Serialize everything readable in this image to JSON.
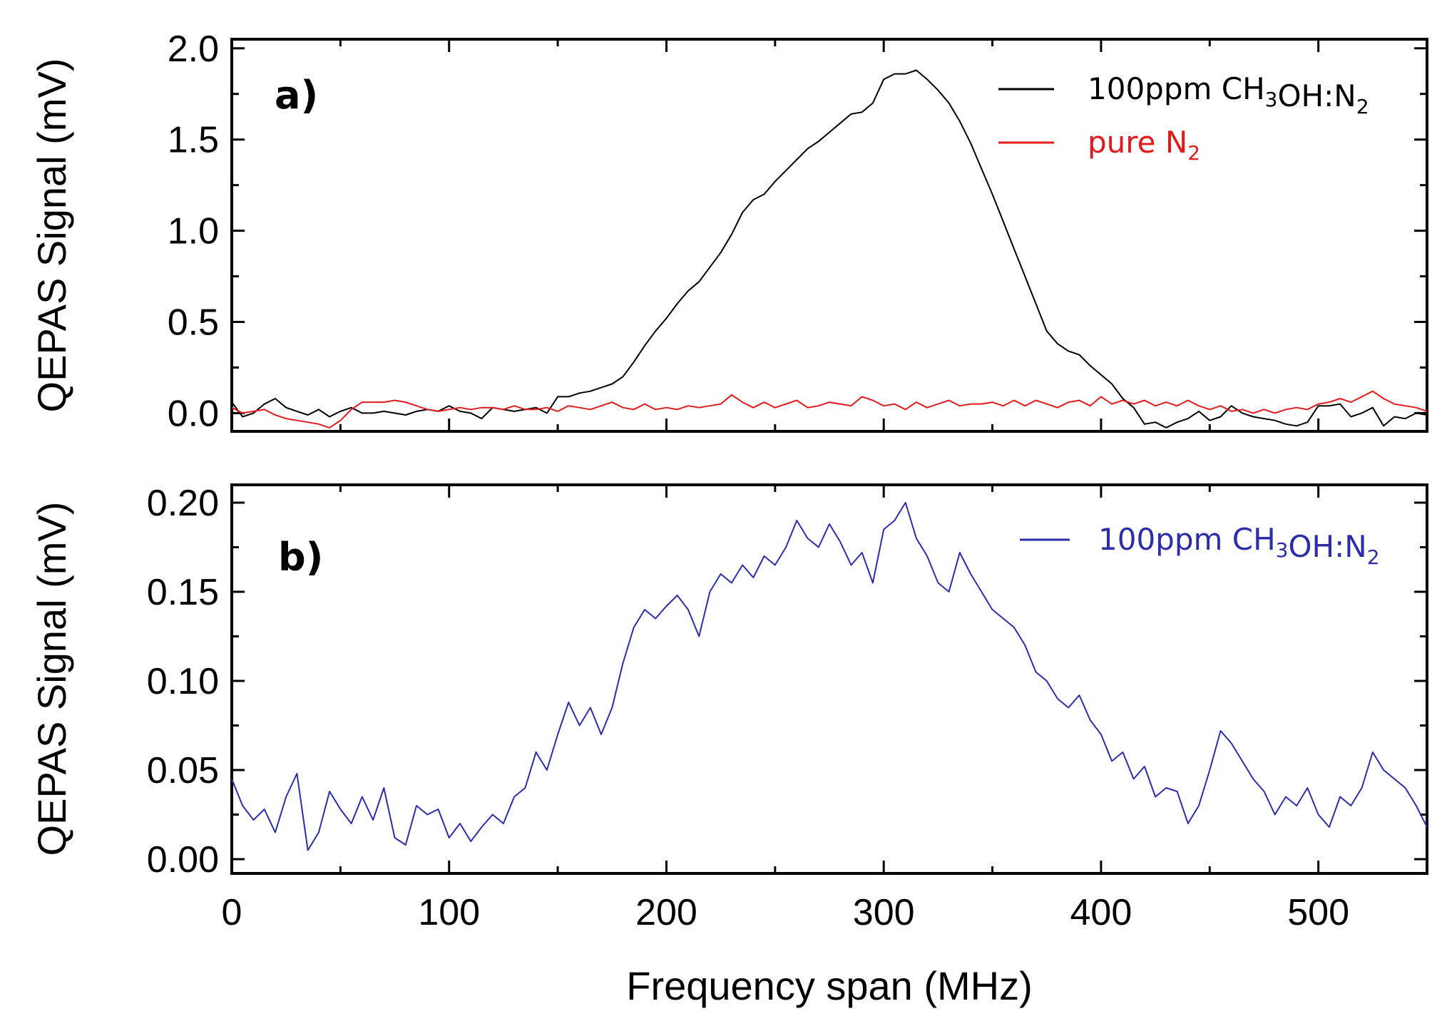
{
  "chart_data": [
    {
      "type": "line",
      "panel_label": "a)",
      "ylabel": "QEPAS Signal (mV)",
      "xlim": [
        0,
        550
      ],
      "ylim": [
        -0.1,
        2.05
      ],
      "yticks": [
        0.0,
        0.5,
        1.0,
        1.5,
        2.0
      ],
      "ytick_labels": [
        "0.0",
        "0.5",
        "1.0",
        "1.5",
        "2.0"
      ],
      "xticks": [
        0,
        100,
        200,
        300,
        400,
        500
      ],
      "grid": false,
      "legend_position": "top-right",
      "series": [
        {
          "name": "100ppm CH3OH:N2",
          "legend": {
            "pre": "100ppm CH",
            "sub1": "3",
            "mid": "OH:N",
            "sub2": "2"
          },
          "color": "#000000",
          "x": [
            0,
            5,
            10,
            15,
            20,
            25,
            30,
            35,
            40,
            45,
            50,
            55,
            60,
            65,
            70,
            75,
            80,
            85,
            90,
            95,
            100,
            105,
            110,
            115,
            120,
            125,
            130,
            135,
            140,
            145,
            150,
            155,
            160,
            165,
            170,
            175,
            180,
            185,
            190,
            195,
            200,
            205,
            210,
            215,
            220,
            225,
            230,
            235,
            240,
            245,
            250,
            255,
            260,
            265,
            270,
            275,
            280,
            285,
            290,
            295,
            300,
            305,
            310,
            315,
            320,
            325,
            330,
            335,
            340,
            345,
            350,
            355,
            360,
            365,
            370,
            375,
            380,
            385,
            390,
            395,
            400,
            405,
            410,
            415,
            420,
            425,
            430,
            435,
            440,
            445,
            450,
            455,
            460,
            465,
            470,
            475,
            480,
            485,
            490,
            495,
            500,
            505,
            510,
            515,
            520,
            525,
            530,
            535,
            540,
            545,
            550
          ],
          "values": [
            0.06,
            -0.02,
            0.0,
            0.05,
            0.08,
            0.03,
            0.01,
            -0.01,
            0.02,
            -0.02,
            0.01,
            0.03,
            0.0,
            0.0,
            0.01,
            0.0,
            -0.01,
            0.01,
            0.02,
            0.01,
            0.04,
            0.01,
            0.0,
            -0.03,
            0.03,
            0.02,
            0.01,
            0.02,
            0.03,
            0.0,
            0.09,
            0.09,
            0.11,
            0.12,
            0.14,
            0.16,
            0.2,
            0.28,
            0.37,
            0.45,
            0.52,
            0.6,
            0.67,
            0.72,
            0.8,
            0.88,
            0.98,
            1.1,
            1.17,
            1.2,
            1.27,
            1.33,
            1.39,
            1.45,
            1.49,
            1.54,
            1.59,
            1.64,
            1.65,
            1.7,
            1.83,
            1.86,
            1.86,
            1.88,
            1.83,
            1.77,
            1.7,
            1.6,
            1.48,
            1.34,
            1.2,
            1.05,
            0.9,
            0.75,
            0.6,
            0.45,
            0.38,
            0.34,
            0.32,
            0.26,
            0.21,
            0.16,
            0.08,
            0.03,
            -0.06,
            -0.05,
            -0.08,
            -0.05,
            -0.03,
            0.01,
            -0.04,
            -0.02,
            0.04,
            0.0,
            -0.02,
            -0.03,
            -0.04,
            -0.06,
            -0.07,
            -0.05,
            0.04,
            0.04,
            0.05,
            -0.02,
            0.0,
            0.03,
            -0.07,
            -0.02,
            -0.03,
            0.0,
            -0.01
          ]
        },
        {
          "name": "pure N2",
          "legend": {
            "pre": "pure N",
            "sub1": "2",
            "mid": "",
            "sub2": ""
          },
          "color": "#e31a1c",
          "x": [
            0,
            5,
            10,
            15,
            20,
            25,
            30,
            35,
            40,
            45,
            50,
            55,
            60,
            65,
            70,
            75,
            80,
            85,
            90,
            95,
            100,
            105,
            110,
            115,
            120,
            125,
            130,
            135,
            140,
            145,
            150,
            155,
            160,
            165,
            170,
            175,
            180,
            185,
            190,
            195,
            200,
            205,
            210,
            215,
            220,
            225,
            230,
            235,
            240,
            245,
            250,
            255,
            260,
            265,
            270,
            275,
            280,
            285,
            290,
            295,
            300,
            305,
            310,
            315,
            320,
            325,
            330,
            335,
            340,
            345,
            350,
            355,
            360,
            365,
            370,
            375,
            380,
            385,
            390,
            395,
            400,
            405,
            410,
            415,
            420,
            425,
            430,
            435,
            440,
            445,
            450,
            455,
            460,
            465,
            470,
            475,
            480,
            485,
            490,
            495,
            500,
            505,
            510,
            515,
            520,
            525,
            530,
            535,
            540,
            545,
            550
          ],
          "values": [
            0.03,
            0.0,
            0.01,
            0.02,
            -0.01,
            -0.03,
            -0.04,
            -0.05,
            -0.06,
            -0.08,
            -0.04,
            0.02,
            0.06,
            0.06,
            0.06,
            0.07,
            0.06,
            0.04,
            0.02,
            0.01,
            0.02,
            0.03,
            0.02,
            0.03,
            0.03,
            0.02,
            0.04,
            0.02,
            0.02,
            0.03,
            0.01,
            0.04,
            0.03,
            0.02,
            0.04,
            0.06,
            0.03,
            0.02,
            0.05,
            0.02,
            0.03,
            0.02,
            0.04,
            0.03,
            0.04,
            0.05,
            0.1,
            0.06,
            0.03,
            0.06,
            0.03,
            0.05,
            0.07,
            0.03,
            0.04,
            0.06,
            0.05,
            0.04,
            0.09,
            0.07,
            0.04,
            0.05,
            0.02,
            0.06,
            0.03,
            0.05,
            0.07,
            0.04,
            0.05,
            0.05,
            0.06,
            0.04,
            0.07,
            0.04,
            0.07,
            0.05,
            0.03,
            0.06,
            0.07,
            0.04,
            0.09,
            0.05,
            0.07,
            0.05,
            0.07,
            0.04,
            0.06,
            0.04,
            0.07,
            0.04,
            0.02,
            0.04,
            0.01,
            0.02,
            0.0,
            0.02,
            0.0,
            0.02,
            0.03,
            0.02,
            0.05,
            0.06,
            0.08,
            0.06,
            0.09,
            0.12,
            0.08,
            0.05,
            0.04,
            0.03,
            0.01
          ]
        }
      ]
    },
    {
      "type": "line",
      "panel_label": "b)",
      "ylabel": "QEPAS Signal (mV)",
      "xlabel": "Frequency span (MHz)",
      "xlim": [
        0,
        550
      ],
      "ylim": [
        -0.008,
        0.21
      ],
      "yticks": [
        0.0,
        0.05,
        0.1,
        0.15,
        0.2
      ],
      "ytick_labels": [
        "0.00",
        "0.05",
        "0.10",
        "0.15",
        "0.20"
      ],
      "xticks": [
        0,
        100,
        200,
        300,
        400,
        500
      ],
      "xtick_labels": [
        "0",
        "100",
        "200",
        "300",
        "400",
        "500"
      ],
      "grid": false,
      "legend_position": "top-right",
      "series": [
        {
          "name": "100ppm CH3OH:N2",
          "legend": {
            "pre": "100ppm CH",
            "sub1": "3",
            "mid": "OH:N",
            "sub2": "2"
          },
          "color": "#2b2dab",
          "x": [
            0,
            5,
            10,
            15,
            20,
            25,
            30,
            35,
            40,
            45,
            50,
            55,
            60,
            65,
            70,
            75,
            80,
            85,
            90,
            95,
            100,
            105,
            110,
            115,
            120,
            125,
            130,
            135,
            140,
            145,
            150,
            155,
            160,
            165,
            170,
            175,
            180,
            185,
            190,
            195,
            200,
            205,
            210,
            215,
            220,
            225,
            230,
            235,
            240,
            245,
            250,
            255,
            260,
            265,
            270,
            275,
            280,
            285,
            290,
            295,
            300,
            305,
            310,
            315,
            320,
            325,
            330,
            335,
            340,
            345,
            350,
            355,
            360,
            365,
            370,
            375,
            380,
            385,
            390,
            395,
            400,
            405,
            410,
            415,
            420,
            425,
            430,
            435,
            440,
            445,
            450,
            455,
            460,
            465,
            470,
            475,
            480,
            485,
            490,
            495,
            500,
            505,
            510,
            515,
            520,
            525,
            530,
            535,
            540,
            545,
            550
          ],
          "values": [
            0.045,
            0.03,
            0.022,
            0.028,
            0.015,
            0.035,
            0.048,
            0.005,
            0.015,
            0.038,
            0.028,
            0.02,
            0.035,
            0.022,
            0.04,
            0.012,
            0.008,
            0.03,
            0.025,
            0.028,
            0.012,
            0.02,
            0.01,
            0.018,
            0.025,
            0.02,
            0.035,
            0.04,
            0.06,
            0.05,
            0.07,
            0.088,
            0.075,
            0.085,
            0.07,
            0.085,
            0.11,
            0.13,
            0.14,
            0.135,
            0.142,
            0.148,
            0.14,
            0.125,
            0.15,
            0.16,
            0.155,
            0.165,
            0.158,
            0.17,
            0.165,
            0.175,
            0.19,
            0.18,
            0.175,
            0.188,
            0.178,
            0.165,
            0.172,
            0.155,
            0.185,
            0.19,
            0.2,
            0.18,
            0.17,
            0.155,
            0.15,
            0.172,
            0.16,
            0.15,
            0.14,
            0.135,
            0.13,
            0.12,
            0.105,
            0.1,
            0.09,
            0.085,
            0.092,
            0.078,
            0.07,
            0.055,
            0.06,
            0.045,
            0.052,
            0.035,
            0.04,
            0.038,
            0.02,
            0.03,
            0.05,
            0.072,
            0.065,
            0.055,
            0.045,
            0.038,
            0.025,
            0.035,
            0.03,
            0.04,
            0.025,
            0.018,
            0.035,
            0.03,
            0.04,
            0.06,
            0.05,
            0.045,
            0.04,
            0.03,
            0.018
          ]
        }
      ]
    }
  ]
}
